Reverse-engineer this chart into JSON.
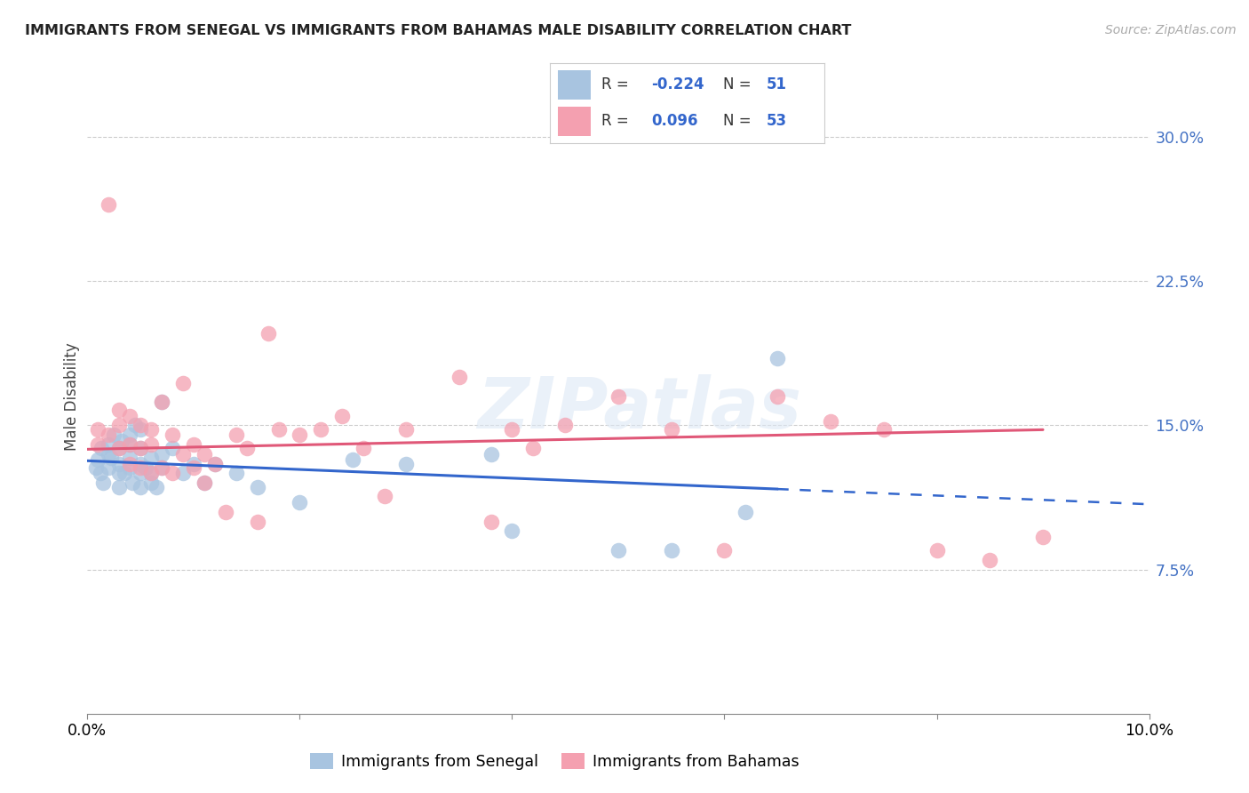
{
  "title": "IMMIGRANTS FROM SENEGAL VS IMMIGRANTS FROM BAHAMAS MALE DISABILITY CORRELATION CHART",
  "source": "Source: ZipAtlas.com",
  "ylabel": "Male Disability",
  "xlim": [
    0.0,
    0.1
  ],
  "ylim": [
    0.0,
    0.33
  ],
  "yticks": [
    0.075,
    0.15,
    0.225,
    0.3
  ],
  "ytick_labels": [
    "7.5%",
    "15.0%",
    "22.5%",
    "30.0%"
  ],
  "xticks": [
    0.0,
    0.02,
    0.04,
    0.06,
    0.08,
    0.1
  ],
  "xtick_labels": [
    "0.0%",
    "",
    "",
    "",
    "",
    "10.0%"
  ],
  "senegal_color": "#a8c4e0",
  "bahamas_color": "#f4a0b0",
  "senegal_line_color": "#3366cc",
  "bahamas_line_color": "#e05878",
  "senegal_R": -0.224,
  "senegal_N": 51,
  "bahamas_R": 0.096,
  "bahamas_N": 53,
  "background_color": "#ffffff",
  "watermark": "ZIPatlas",
  "legend_color": "#3366cc",
  "senegal_x": [
    0.0008,
    0.001,
    0.0012,
    0.0013,
    0.0015,
    0.002,
    0.002,
    0.002,
    0.0022,
    0.0025,
    0.003,
    0.003,
    0.003,
    0.003,
    0.0032,
    0.0035,
    0.004,
    0.004,
    0.004,
    0.004,
    0.0042,
    0.0045,
    0.005,
    0.005,
    0.005,
    0.005,
    0.005,
    0.0055,
    0.006,
    0.006,
    0.006,
    0.0065,
    0.007,
    0.007,
    0.007,
    0.008,
    0.009,
    0.01,
    0.011,
    0.012,
    0.014,
    0.016,
    0.02,
    0.025,
    0.03,
    0.038,
    0.04,
    0.05,
    0.055,
    0.062,
    0.065
  ],
  "senegal_y": [
    0.128,
    0.132,
    0.125,
    0.138,
    0.12,
    0.135,
    0.14,
    0.128,
    0.133,
    0.145,
    0.118,
    0.125,
    0.13,
    0.138,
    0.142,
    0.125,
    0.128,
    0.133,
    0.14,
    0.145,
    0.12,
    0.15,
    0.118,
    0.125,
    0.13,
    0.138,
    0.148,
    0.128,
    0.12,
    0.125,
    0.133,
    0.118,
    0.128,
    0.135,
    0.162,
    0.138,
    0.125,
    0.13,
    0.12,
    0.13,
    0.125,
    0.118,
    0.11,
    0.132,
    0.13,
    0.135,
    0.095,
    0.085,
    0.085,
    0.105,
    0.185
  ],
  "bahamas_x": [
    0.001,
    0.001,
    0.002,
    0.002,
    0.003,
    0.003,
    0.003,
    0.004,
    0.004,
    0.004,
    0.005,
    0.005,
    0.005,
    0.006,
    0.006,
    0.006,
    0.007,
    0.007,
    0.008,
    0.008,
    0.009,
    0.009,
    0.01,
    0.01,
    0.011,
    0.011,
    0.012,
    0.013,
    0.014,
    0.015,
    0.016,
    0.017,
    0.018,
    0.02,
    0.022,
    0.024,
    0.026,
    0.028,
    0.03,
    0.035,
    0.038,
    0.04,
    0.042,
    0.045,
    0.05,
    0.055,
    0.06,
    0.065,
    0.07,
    0.075,
    0.08,
    0.085,
    0.09
  ],
  "bahamas_y": [
    0.14,
    0.148,
    0.265,
    0.145,
    0.138,
    0.15,
    0.158,
    0.13,
    0.14,
    0.155,
    0.128,
    0.138,
    0.15,
    0.125,
    0.14,
    0.148,
    0.128,
    0.162,
    0.125,
    0.145,
    0.135,
    0.172,
    0.128,
    0.14,
    0.12,
    0.135,
    0.13,
    0.105,
    0.145,
    0.138,
    0.1,
    0.198,
    0.148,
    0.145,
    0.148,
    0.155,
    0.138,
    0.113,
    0.148,
    0.175,
    0.1,
    0.148,
    0.138,
    0.15,
    0.165,
    0.148,
    0.085,
    0.165,
    0.152,
    0.148,
    0.085,
    0.08,
    0.092
  ]
}
